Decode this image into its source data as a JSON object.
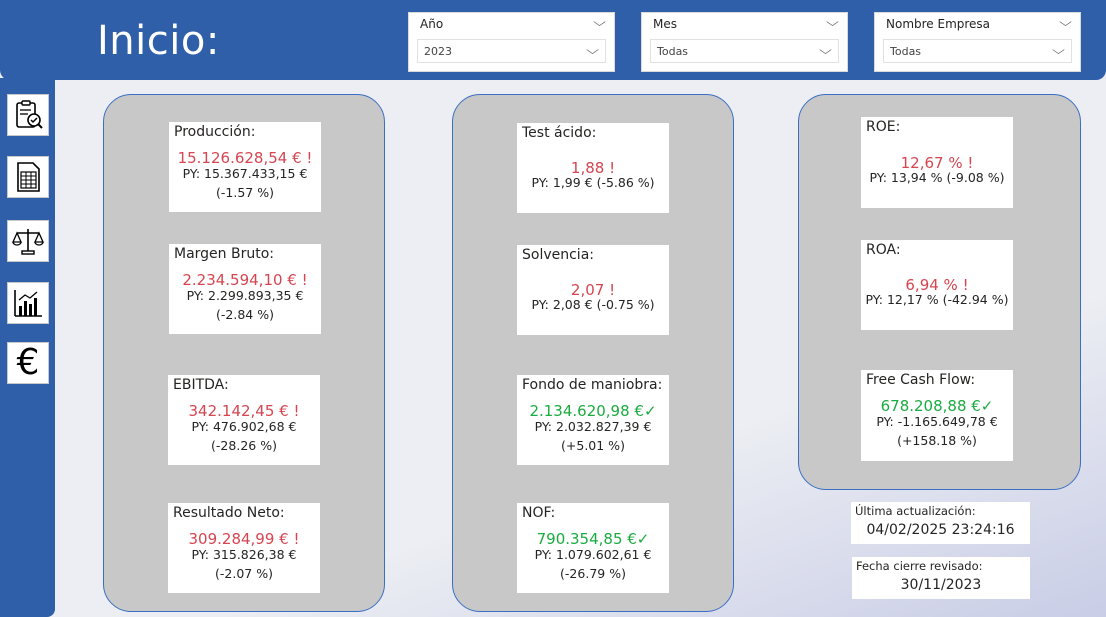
{
  "page": {
    "title": "Inicio:"
  },
  "filters": {
    "year": {
      "label": "Año",
      "value": "2023"
    },
    "month": {
      "label": "Mes",
      "value": "Todas"
    },
    "company": {
      "label": "Nombre Empresa",
      "value": "Todas"
    }
  },
  "nav": [
    {
      "icon": "clipboard-check-icon"
    },
    {
      "icon": "spreadsheet-icon"
    },
    {
      "icon": "balance-scale-icon"
    },
    {
      "icon": "bar-chart-icon"
    },
    {
      "icon": "euro-icon"
    }
  ],
  "kpis": [
    {
      "title": "Producción:",
      "value": "15.126.628,54 € !",
      "py": "PY: 15.367.433,15 €",
      "pct": "(-1.57 %)",
      "status": "negative"
    },
    {
      "title": "Margen Bruto:",
      "value": "2.234.594,10 € !",
      "py": "PY: 2.299.893,35 €",
      "pct": "(-2.84 %)",
      "status": "negative"
    },
    {
      "title": "EBITDA:",
      "value": "342.142,45 € !",
      "py": "PY: 476.902,68 €",
      "pct": "(-28.26 %)",
      "status": "negative"
    },
    {
      "title": "Resultado Neto:",
      "value": "309.284,99 € !",
      "py": "PY: 315.826,38 €",
      "pct": "(-2.07 %)",
      "status": "negative"
    },
    {
      "title": "Test ácido:",
      "value": "1,88 !",
      "py": "PY: 1,99 € (-5.86 %)",
      "pct": "",
      "status": "negative"
    },
    {
      "title": "Solvencia:",
      "value": "2,07 !",
      "py": "PY: 2,08 € (-0.75 %)",
      "pct": "",
      "status": "negative"
    },
    {
      "title": "Fondo de maniobra:",
      "value": "2.134.620,98 €✓",
      "py": "PY: 2.032.827,39 €",
      "pct": "(+5.01 %)",
      "status": "positive"
    },
    {
      "title": "NOF:",
      "value": "790.354,85 €✓",
      "py": "PY: 1.079.602,61 €",
      "pct": "(-26.79 %)",
      "status": "positive"
    },
    {
      "title": "ROE:",
      "value": "12,67 % !",
      "py": "PY: 13,94 % (-9.08 %)",
      "pct": "",
      "status": "negative"
    },
    {
      "title": "ROA:",
      "value": "6,94 % !",
      "py": "PY: 12,17 % (-42.94 %)",
      "pct": "",
      "status": "negative"
    },
    {
      "title": "Free Cash Flow:",
      "value": "678.208,88 €✓",
      "py": "PY: -1.165.649,78 €",
      "pct": "(+158.18 %)",
      "status": "positive"
    }
  ],
  "info": {
    "last_update": {
      "label": "Última actualización:",
      "value": "04/02/2025 23:24:16"
    },
    "closing_date": {
      "label": "Fecha cierre revisado:",
      "value": "30/11/2023"
    }
  },
  "colors": {
    "header": "#2e5fa8",
    "negative": "#d64550",
    "positive": "#1aab40",
    "group_bg": "#c8c8c8",
    "group_border": "#3b6fc4"
  }
}
